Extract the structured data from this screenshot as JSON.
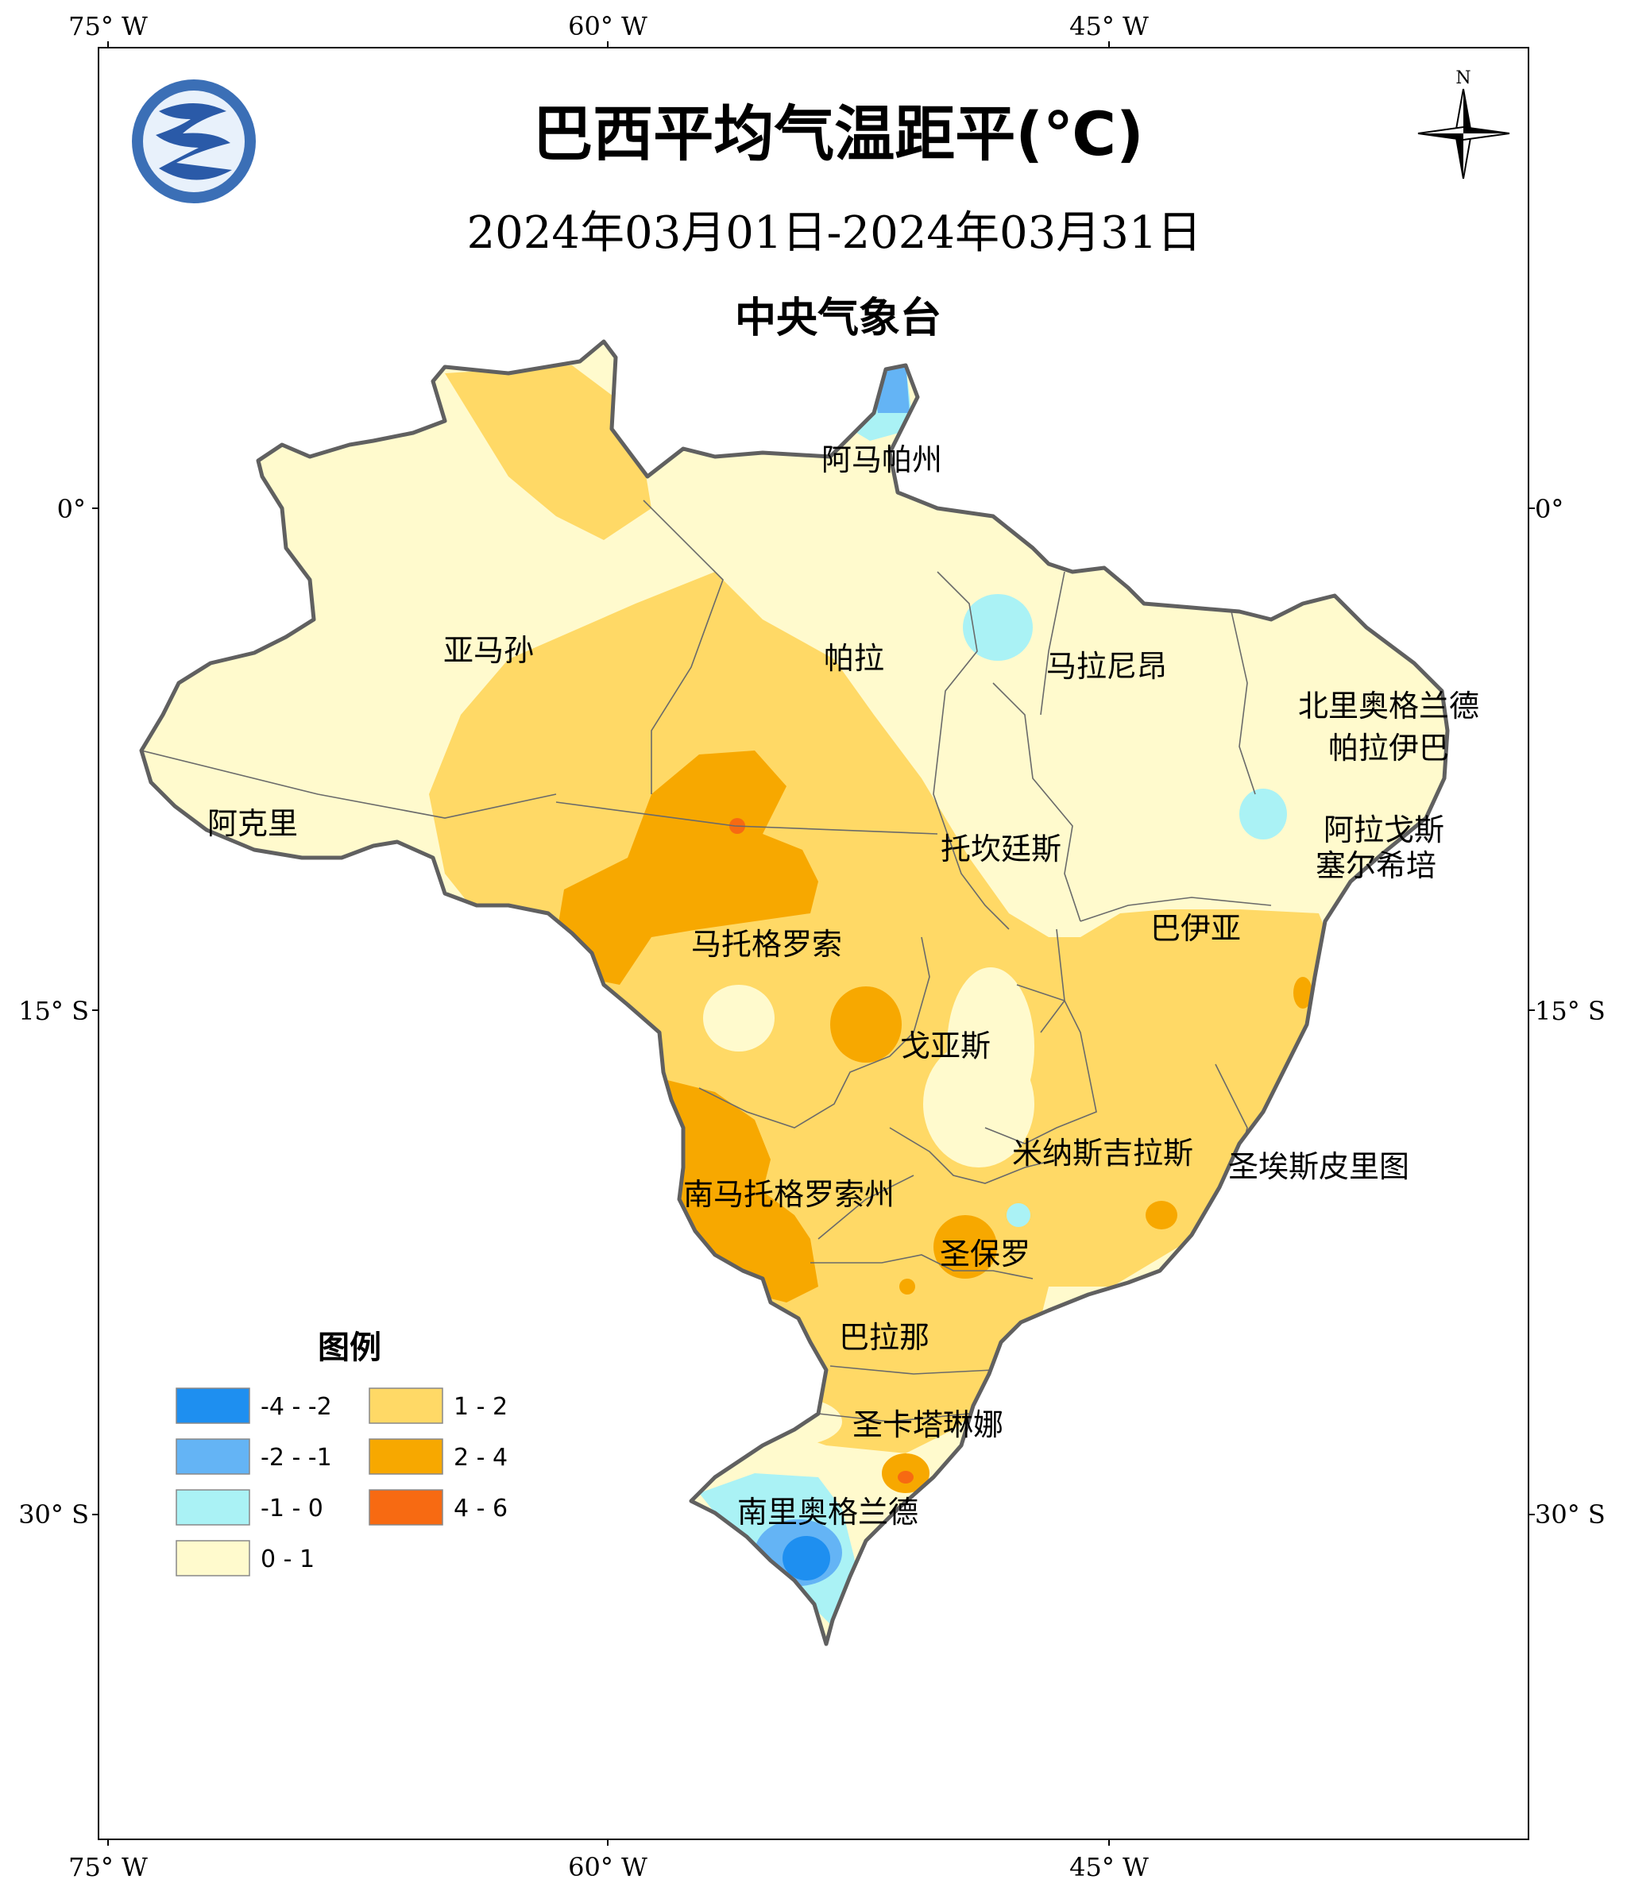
{
  "map": {
    "title": "巴西平均气温距平(℃)",
    "date_range": "2024年03月01日-2024年03月31日",
    "organization": "中央气象台",
    "north_label": "N",
    "axes": {
      "top": [
        "75° W",
        "60° W",
        "45° W"
      ],
      "bottom": [
        "75° W",
        "60° W",
        "45° W"
      ],
      "left": [
        "0°",
        "15° S",
        "30° S"
      ],
      "right": [
        "0°",
        "15° S",
        "30° S"
      ]
    },
    "states": [
      "阿马帕州",
      "亚马孙",
      "帕拉",
      "马拉尼昂",
      "北里奥格兰德",
      "帕拉伊巴",
      "阿克里",
      "托坎廷斯",
      "阿拉戈斯",
      "塞尔希培",
      "巴伊亚",
      "马托格罗索",
      "戈亚斯",
      "米纳斯吉拉斯",
      "圣埃斯皮里图",
      "南马托格罗索州",
      "圣保罗",
      "巴拉那",
      "圣卡塔琳娜",
      "南里奥格兰德"
    ],
    "colors": {
      "neg_4_2": "#1e8ff0",
      "neg_2_1": "#64b4f5",
      "neg_1_0": "#aaf2f5",
      "pos_0_1": "#fffacd",
      "pos_1_2": "#ffd966",
      "pos_2_4": "#f7a800",
      "pos_4_6": "#f76a12",
      "border": "#606060"
    }
  },
  "legend": {
    "title": "图例",
    "items": [
      {
        "label": "-4 - -2",
        "color": "#1e8ff0"
      },
      {
        "label": "-2 - -1",
        "color": "#64b4f5"
      },
      {
        "label": "-1 - 0",
        "color": "#aaf2f5"
      },
      {
        "label": "0 - 1",
        "color": "#fffacd"
      },
      {
        "label": "1 - 2",
        "color": "#ffd966"
      },
      {
        "label": "2 - 4",
        "color": "#f7a800"
      },
      {
        "label": "4 - 6",
        "color": "#f76a12"
      }
    ]
  }
}
